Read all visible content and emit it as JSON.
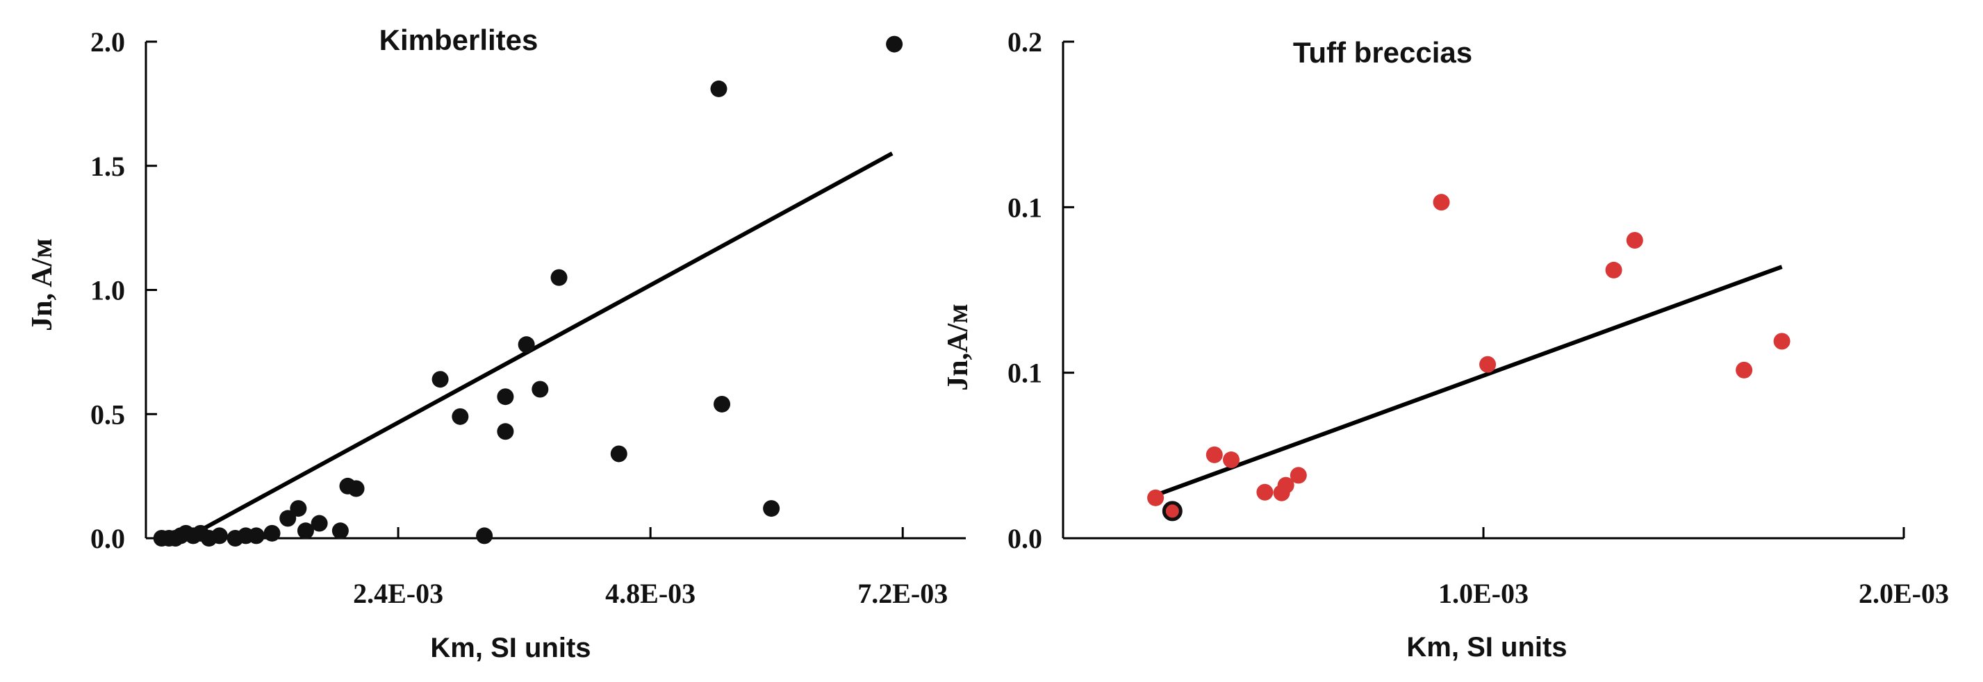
{
  "chart_data": [
    {
      "type": "scatter",
      "title": "Kimberlites",
      "xlabel": "Km, SI units",
      "ylabel": "Jn, A/м",
      "xlim": [
        0,
        0.0078
      ],
      "ylim": [
        0,
        2.0
      ],
      "x_ticks": [
        0.0024,
        0.0048,
        0.0072
      ],
      "x_tick_labels": [
        "2.4E-03",
        "4.8E-03",
        "7.2E-03"
      ],
      "y_ticks": [
        0,
        0.5,
        1.0,
        1.5,
        2.0
      ],
      "y_tick_labels": [
        "0.0",
        "0.5",
        "1.0",
        "1.5",
        "2.0"
      ],
      "marker_color": "#111111",
      "points": [
        {
          "x": 0.00015,
          "y": 0.0
        },
        {
          "x": 0.00022,
          "y": 0.0
        },
        {
          "x": 0.00028,
          "y": 0.0
        },
        {
          "x": 0.00033,
          "y": 0.01
        },
        {
          "x": 0.00038,
          "y": 0.02
        },
        {
          "x": 0.00045,
          "y": 0.01
        },
        {
          "x": 0.00052,
          "y": 0.02
        },
        {
          "x": 0.0006,
          "y": 0.0
        },
        {
          "x": 0.0007,
          "y": 0.01
        },
        {
          "x": 0.00085,
          "y": 0.0
        },
        {
          "x": 0.00095,
          "y": 0.01
        },
        {
          "x": 0.00105,
          "y": 0.01
        },
        {
          "x": 0.0012,
          "y": 0.02
        },
        {
          "x": 0.00135,
          "y": 0.08
        },
        {
          "x": 0.00145,
          "y": 0.12
        },
        {
          "x": 0.00152,
          "y": 0.03
        },
        {
          "x": 0.00165,
          "y": 0.06
        },
        {
          "x": 0.00185,
          "y": 0.03
        },
        {
          "x": 0.00192,
          "y": 0.21
        },
        {
          "x": 0.002,
          "y": 0.2
        },
        {
          "x": 0.0028,
          "y": 0.64
        },
        {
          "x": 0.00299,
          "y": 0.49
        },
        {
          "x": 0.00322,
          "y": 0.01
        },
        {
          "x": 0.00342,
          "y": 0.57
        },
        {
          "x": 0.00342,
          "y": 0.43
        },
        {
          "x": 0.00362,
          "y": 0.78
        },
        {
          "x": 0.00375,
          "y": 0.6
        },
        {
          "x": 0.00393,
          "y": 1.05
        },
        {
          "x": 0.0045,
          "y": 0.34
        },
        {
          "x": 0.00545,
          "y": 1.81
        },
        {
          "x": 0.00548,
          "y": 0.54
        },
        {
          "x": 0.00595,
          "y": 0.12
        },
        {
          "x": 0.00712,
          "y": 1.99
        }
      ],
      "trendline": {
        "x": [
          0.00038,
          0.0071
        ],
        "y": [
          0.0,
          1.55
        ]
      }
    },
    {
      "type": "scatter",
      "title": "Tuff breccias",
      "xlabel": "Km, SI units",
      "ylabel": "Jn,A/м",
      "xlim": [
        0,
        0.002
      ],
      "ylim": [
        0,
        0.15
      ],
      "x_ticks": [
        0.001,
        0.002
      ],
      "x_tick_labels": [
        "1.0E-03",
        "2.0E-03"
      ],
      "y_ticks": [
        0,
        0.05,
        0.1,
        0.15
      ],
      "y_tick_labels": [
        "0.0",
        "0.1",
        "0.1",
        "0.2"
      ],
      "marker_color": "#d93636",
      "points": [
        {
          "x": 0.00022,
          "y": 0.0122
        },
        {
          "x": 0.00036,
          "y": 0.0252
        },
        {
          "x": 0.0004,
          "y": 0.0237
        },
        {
          "x": 0.00048,
          "y": 0.0139
        },
        {
          "x": 0.00052,
          "y": 0.0137
        },
        {
          "x": 0.00053,
          "y": 0.016
        },
        {
          "x": 0.00056,
          "y": 0.019
        },
        {
          "x": 0.0009,
          "y": 0.1015
        },
        {
          "x": 0.00101,
          "y": 0.0525
        },
        {
          "x": 0.00131,
          "y": 0.081
        },
        {
          "x": 0.00136,
          "y": 0.09
        },
        {
          "x": 0.00162,
          "y": 0.0508
        },
        {
          "x": 0.00171,
          "y": 0.0595
        }
      ],
      "highlight_point": {
        "x": 0.00026,
        "y": 0.0082
      },
      "trendline": {
        "x": [
          0.00022,
          0.00171
        ],
        "y": [
          0.013,
          0.082
        ]
      }
    }
  ]
}
